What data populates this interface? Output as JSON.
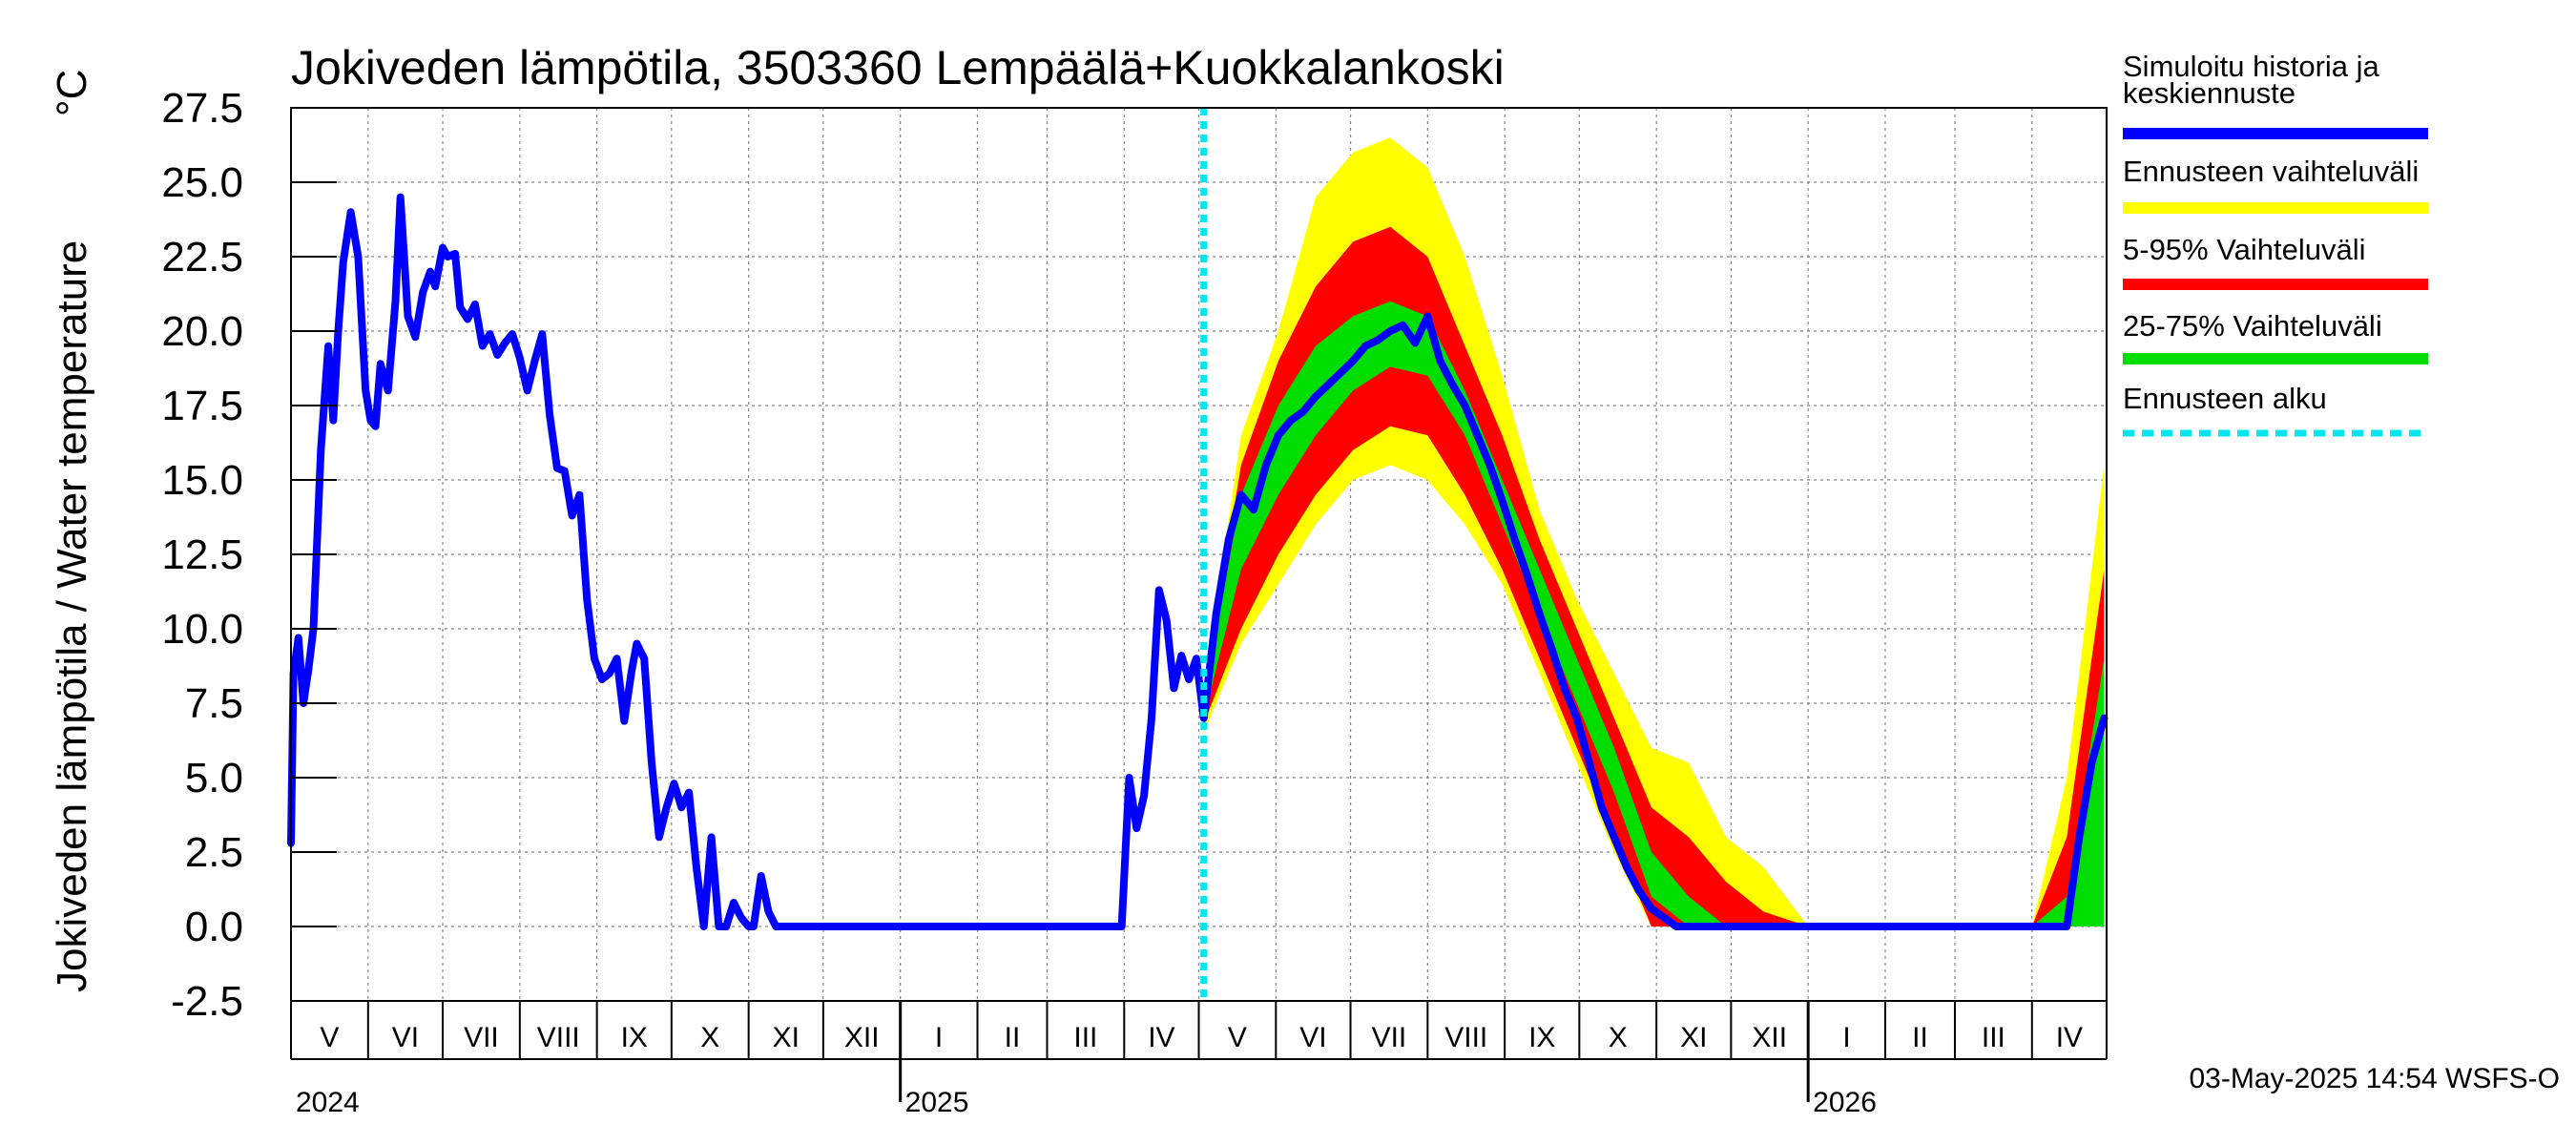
{
  "chart_data": {
    "type": "line",
    "title": "Jokiveden lämpötila, 3503360 Lempäälä+Kuokkalankoski",
    "ylabel": "Jokiveden lämpötila / Water temperature",
    "yunit": "°C",
    "ylim": [
      -2.5,
      27.5
    ],
    "yticks": [
      "27.5",
      "25.0",
      "22.5",
      "20.0",
      "17.5",
      "15.0",
      "12.5",
      "10.0",
      "7.5",
      "5.0",
      "2.5",
      "0.0",
      "-2.5"
    ],
    "xlim": [
      "2024-05-01",
      "2026-05-01"
    ],
    "months": [
      {
        "label": "V",
        "start": "2024-05-01"
      },
      {
        "label": "VI",
        "start": "2024-06-01"
      },
      {
        "label": "VII",
        "start": "2024-07-01"
      },
      {
        "label": "VIII",
        "start": "2024-08-01"
      },
      {
        "label": "IX",
        "start": "2024-09-01"
      },
      {
        "label": "X",
        "start": "2024-10-01"
      },
      {
        "label": "XI",
        "start": "2024-11-01"
      },
      {
        "label": "XII",
        "start": "2024-12-01"
      },
      {
        "label": "I",
        "start": "2025-01-01"
      },
      {
        "label": "II",
        "start": "2025-02-01"
      },
      {
        "label": "III",
        "start": "2025-03-01"
      },
      {
        "label": "IV",
        "start": "2025-04-01"
      },
      {
        "label": "V",
        "start": "2025-05-01"
      },
      {
        "label": "VI",
        "start": "2025-06-01"
      },
      {
        "label": "VII",
        "start": "2025-07-01"
      },
      {
        "label": "VIII",
        "start": "2025-08-01"
      },
      {
        "label": "IX",
        "start": "2025-09-01"
      },
      {
        "label": "X",
        "start": "2025-10-01"
      },
      {
        "label": "XI",
        "start": "2025-11-01"
      },
      {
        "label": "XII",
        "start": "2025-12-01"
      },
      {
        "label": "I",
        "start": "2026-01-01"
      },
      {
        "label": "II",
        "start": "2026-02-01"
      },
      {
        "label": "III",
        "start": "2026-03-01"
      },
      {
        "label": "IV",
        "start": "2026-04-01"
      }
    ],
    "years": [
      {
        "label": "2024",
        "date": "2024-05-01"
      },
      {
        "label": "2025",
        "date": "2025-01-01"
      },
      {
        "label": "2026",
        "date": "2026-01-01"
      }
    ],
    "forecast_start": "2025-05-03",
    "grid": true,
    "legend_position": "right",
    "colors": {
      "history": "#0000ff",
      "range_full": "#ffff00",
      "range_5_95": "#ff0000",
      "range_25_75": "#00dd00",
      "forecast_start": "#00e5ee"
    },
    "series": [
      {
        "name": "Simuloitu historia ja keskiennuste",
        "x": [
          "2024-05-01",
          "2024-05-02",
          "2024-05-04",
          "2024-05-06",
          "2024-05-08",
          "2024-05-10",
          "2024-05-13",
          "2024-05-16",
          "2024-05-18",
          "2024-05-20",
          "2024-05-22",
          "2024-05-25",
          "2024-05-28",
          "2024-05-31",
          "2024-06-02",
          "2024-06-04",
          "2024-06-06",
          "2024-06-09",
          "2024-06-12",
          "2024-06-14",
          "2024-06-17",
          "2024-06-20",
          "2024-06-23",
          "2024-06-26",
          "2024-06-28",
          "2024-07-01",
          "2024-07-03",
          "2024-07-06",
          "2024-07-08",
          "2024-07-11",
          "2024-07-14",
          "2024-07-17",
          "2024-07-20",
          "2024-07-23",
          "2024-07-26",
          "2024-07-29",
          "2024-08-01",
          "2024-08-04",
          "2024-08-07",
          "2024-08-10",
          "2024-08-13",
          "2024-08-16",
          "2024-08-19",
          "2024-08-22",
          "2024-08-25",
          "2024-08-28",
          "2024-08-31",
          "2024-09-03",
          "2024-09-06",
          "2024-09-09",
          "2024-09-12",
          "2024-09-15",
          "2024-09-17",
          "2024-09-20",
          "2024-09-23",
          "2024-09-26",
          "2024-09-29",
          "2024-10-02",
          "2024-10-05",
          "2024-10-08",
          "2024-10-11",
          "2024-10-14",
          "2024-10-17",
          "2024-10-20",
          "2024-10-23",
          "2024-10-26",
          "2024-10-29",
          "2024-11-01",
          "2024-11-03",
          "2024-11-06",
          "2024-11-09",
          "2024-11-12",
          "2024-11-15",
          "2024-11-18",
          "2024-11-21",
          "2024-11-24",
          "2024-11-27",
          "2024-11-30",
          "2024-12-02",
          "2024-12-05",
          "2024-12-08",
          "2024-12-11",
          "2024-12-14",
          "2024-12-17",
          "2024-12-20",
          "2024-12-23",
          "2024-12-26",
          "2024-12-29",
          "2025-01-01",
          "2025-02-01",
          "2025-03-01",
          "2025-03-31",
          "2025-04-03",
          "2025-04-06",
          "2025-04-09",
          "2025-04-12",
          "2025-04-15",
          "2025-04-18",
          "2025-04-21",
          "2025-04-24",
          "2025-04-27",
          "2025-04-30",
          "2025-05-03",
          "2025-05-08",
          "2025-05-13",
          "2025-05-18",
          "2025-05-23",
          "2025-05-28",
          "2025-06-02",
          "2025-06-07",
          "2025-06-12",
          "2025-06-17",
          "2025-06-22",
          "2025-06-27",
          "2025-07-02",
          "2025-07-07",
          "2025-07-12",
          "2025-07-17",
          "2025-07-22",
          "2025-07-27",
          "2025-08-01",
          "2025-08-06",
          "2025-08-11",
          "2025-08-16",
          "2025-08-21",
          "2025-08-26",
          "2025-08-31",
          "2025-09-05",
          "2025-09-10",
          "2025-09-15",
          "2025-09-20",
          "2025-09-25",
          "2025-09-30",
          "2025-10-05",
          "2025-10-10",
          "2025-10-15",
          "2025-10-20",
          "2025-10-25",
          "2025-10-30",
          "2025-11-04",
          "2025-11-09",
          "2025-11-14",
          "2025-11-20",
          "2025-11-25",
          "2025-12-01",
          "2026-01-01",
          "2026-04-15",
          "2026-04-20",
          "2026-04-25",
          "2026-04-30"
        ],
        "values": [
          2.8,
          8.5,
          9.7,
          7.5,
          8.6,
          10.0,
          16.0,
          19.5,
          17.0,
          20.0,
          22.3,
          24.0,
          22.5,
          18.0,
          17.0,
          16.8,
          18.9,
          18.0,
          21.0,
          24.5,
          20.5,
          19.8,
          21.3,
          22.0,
          21.5,
          22.8,
          22.5,
          22.6,
          20.8,
          20.4,
          20.9,
          19.5,
          19.9,
          19.2,
          19.6,
          19.9,
          19.1,
          18.0,
          19.0,
          19.9,
          17.2,
          15.4,
          15.3,
          13.8,
          14.5,
          11.0,
          9.0,
          8.3,
          8.5,
          9.0,
          6.9,
          8.6,
          9.5,
          9.0,
          5.5,
          3.0,
          4.0,
          4.8,
          4.0,
          4.5,
          2.0,
          0.0,
          3.0,
          0.0,
          0.0,
          0.8,
          0.3,
          0.0,
          0.0,
          1.7,
          0.5,
          0.0,
          0.0,
          0.0,
          0.0,
          0.0,
          0.0,
          0.0,
          0.0,
          0.0,
          0.0,
          0.0,
          0.0,
          0.0,
          0.0,
          0.0,
          0.0,
          0.0,
          0.0,
          0.0,
          0.0,
          0.0,
          5.0,
          3.3,
          4.4,
          7.0,
          11.3,
          10.3,
          8.0,
          9.1,
          8.3,
          9.0,
          7.0,
          10.5,
          13.0,
          14.5,
          14.0,
          15.5,
          16.5,
          17.0,
          17.3,
          17.8,
          18.2,
          18.6,
          19.0,
          19.5,
          19.7,
          20.0,
          20.2,
          19.6,
          20.5,
          19.0,
          18.2,
          17.5,
          16.5,
          15.5,
          14.3,
          13.0,
          11.8,
          10.5,
          9.3,
          8.0,
          7.0,
          5.5,
          4.0,
          3.0,
          2.0,
          1.2,
          0.6,
          0.3,
          0.0,
          0.0,
          0.0,
          0.0,
          0.0,
          0.0,
          0.0,
          3.0,
          5.5,
          7.0
        ]
      },
      {
        "name": "Ennusteen vaihteluväli",
        "x": [
          "2025-05-03",
          "2025-05-18",
          "2025-06-02",
          "2025-06-17",
          "2025-07-02",
          "2025-07-17",
          "2025-08-01",
          "2025-08-16",
          "2025-08-31",
          "2025-09-15",
          "2025-09-30",
          "2025-10-15",
          "2025-10-30",
          "2025-11-14",
          "2025-11-29",
          "2025-12-14",
          "2026-01-01",
          "2026-04-01",
          "2026-04-15",
          "2026-04-30"
        ],
        "low": [
          6.5,
          9.5,
          11.5,
          13.5,
          15.0,
          15.5,
          15.0,
          13.5,
          11.5,
          8.5,
          5.5,
          2.5,
          0.0,
          0.0,
          0.0,
          0.0,
          0.0,
          0.0,
          0.0,
          0.0
        ],
        "high": [
          8.0,
          16.5,
          20.0,
          24.5,
          26.0,
          26.5,
          25.5,
          22.5,
          18.5,
          14.0,
          11.0,
          8.5,
          6.0,
          5.5,
          3.0,
          2.0,
          0.0,
          0.0,
          5.0,
          15.5
        ]
      },
      {
        "name": "5-95% Vaihteluväli",
        "x": [
          "2025-05-03",
          "2025-05-18",
          "2025-06-02",
          "2025-06-17",
          "2025-07-02",
          "2025-07-17",
          "2025-08-01",
          "2025-08-16",
          "2025-08-31",
          "2025-09-15",
          "2025-09-30",
          "2025-10-15",
          "2025-10-30",
          "2025-11-14",
          "2025-11-29",
          "2025-12-14",
          "2026-01-01",
          "2026-04-01",
          "2026-04-15",
          "2026-04-30"
        ],
        "low": [
          6.8,
          10.0,
          12.5,
          14.5,
          16.0,
          16.8,
          16.5,
          14.5,
          12.0,
          9.0,
          6.0,
          3.0,
          0.0,
          0.0,
          0.0,
          0.0,
          0.0,
          0.0,
          0.0,
          0.0
        ],
        "high": [
          7.8,
          15.5,
          19.0,
          21.5,
          23.0,
          23.5,
          22.5,
          19.5,
          16.5,
          13.0,
          10.0,
          7.0,
          4.0,
          3.0,
          1.5,
          0.5,
          0.0,
          0.0,
          3.0,
          12.0
        ]
      },
      {
        "name": "25-75% Vaihteluväli",
        "x": [
          "2025-05-03",
          "2025-05-18",
          "2025-06-02",
          "2025-06-17",
          "2025-07-02",
          "2025-07-17",
          "2025-08-01",
          "2025-08-16",
          "2025-08-31",
          "2025-09-15",
          "2025-09-30",
          "2025-10-15",
          "2025-10-30",
          "2025-11-14",
          "2025-11-29",
          "2025-12-14",
          "2026-01-01",
          "2026-04-01",
          "2026-04-15",
          "2026-04-30"
        ],
        "low": [
          7.0,
          12.0,
          14.5,
          16.5,
          18.0,
          18.8,
          18.5,
          16.5,
          13.5,
          10.5,
          7.5,
          4.5,
          1.0,
          0.0,
          0.0,
          0.0,
          0.0,
          0.0,
          0.0,
          0.0
        ],
        "high": [
          7.5,
          14.5,
          17.5,
          19.5,
          20.5,
          21.0,
          20.5,
          18.0,
          15.0,
          12.0,
          9.0,
          6.0,
          2.5,
          1.0,
          0.0,
          0.0,
          0.0,
          0.0,
          1.0,
          9.0
        ]
      }
    ],
    "legend": [
      {
        "key": "history",
        "lines": [
          "Simuloitu historia ja",
          "keskiennuste"
        ],
        "color": "#0000ff",
        "style": "solid"
      },
      {
        "key": "range_full",
        "lines": [
          "Ennusteen vaihteluväli"
        ],
        "color": "#ffff00",
        "style": "solid"
      },
      {
        "key": "range_5_95",
        "lines": [
          "5-95% Vaihteluväli"
        ],
        "color": "#ff0000",
        "style": "solid"
      },
      {
        "key": "range_25_75",
        "lines": [
          "25-75% Vaihteluväli"
        ],
        "color": "#00dd00",
        "style": "solid"
      },
      {
        "key": "forecast_start",
        "lines": [
          "Ennusteen alku"
        ],
        "color": "#00e5ee",
        "style": "dashed"
      }
    ],
    "footer": "03-May-2025 14:54 WSFS-O"
  }
}
